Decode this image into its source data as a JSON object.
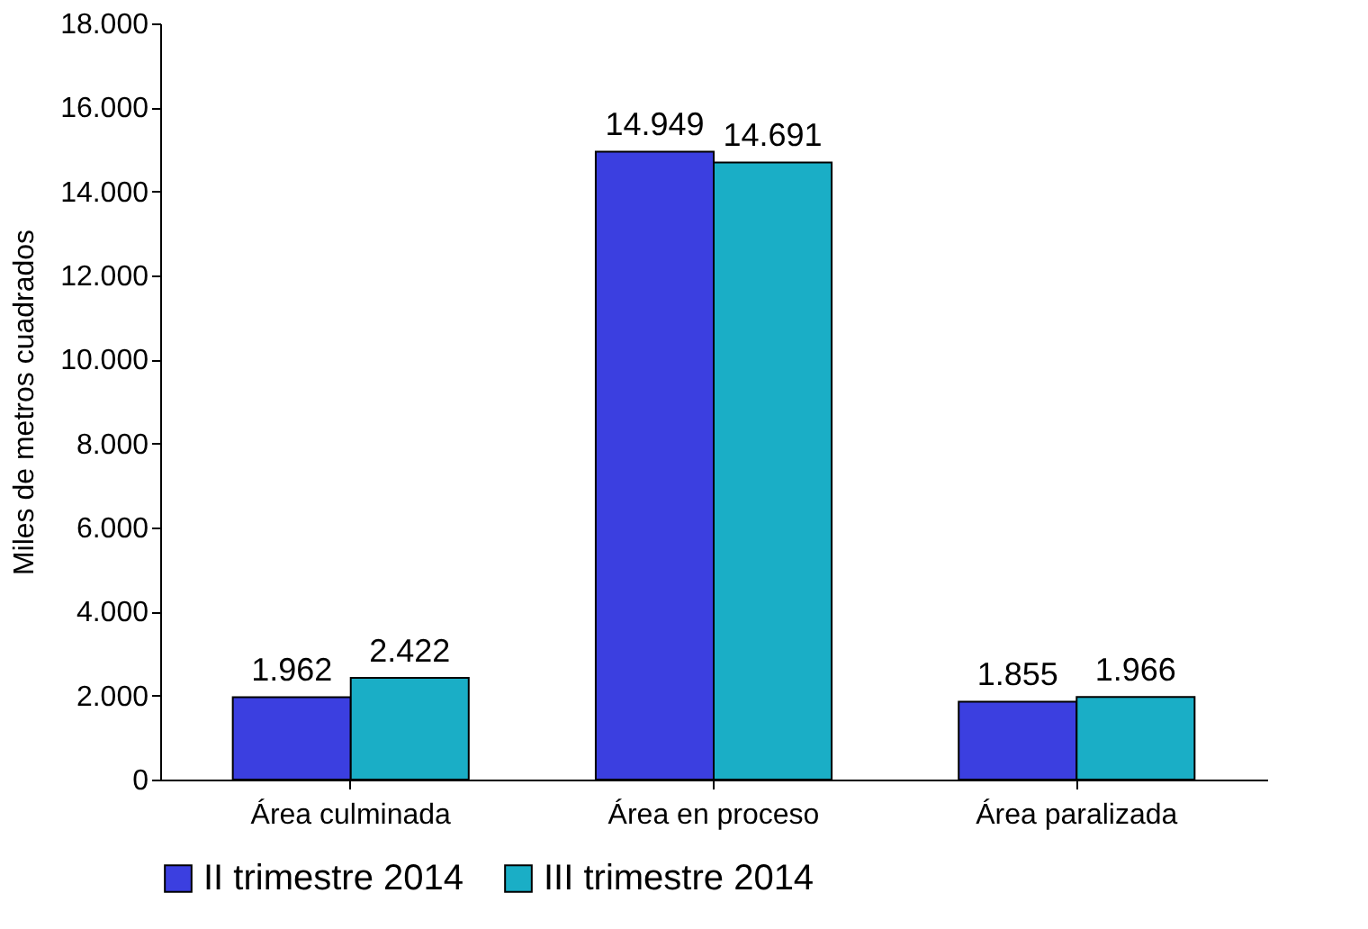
{
  "chart_data": {
    "type": "bar",
    "ylabel": "Miles de metros cuadrados",
    "categories": [
      "Área culminada",
      "Área en proceso",
      "Área paralizada"
    ],
    "series": [
      {
        "name": "II trimestre 2014",
        "color": "#3b3fe0",
        "values": [
          1962,
          14949,
          1855
        ],
        "value_labels": [
          "1.962",
          "14.949",
          "1.855"
        ]
      },
      {
        "name": "III trimestre 2014",
        "color": "#1aaec6",
        "values": [
          2422,
          14691,
          1966
        ],
        "value_labels": [
          "2.422",
          "14.691",
          "1.966"
        ]
      }
    ],
    "ylim": [
      0,
      18000
    ],
    "yticks": [
      0,
      {
        "value": 2000,
        "label": "2.000"
      },
      {
        "value": 4000,
        "label": "4.000"
      },
      {
        "value": 6000,
        "label": "6.000"
      },
      {
        "value": 8000,
        "label": "8.000"
      },
      {
        "value": 10000,
        "label": "10.000"
      },
      {
        "value": 12000,
        "label": "12.000"
      },
      {
        "value": 14000,
        "label": "14.000"
      },
      {
        "value": 16000,
        "label": "16.000"
      },
      {
        "value": 18000,
        "label": "18.000"
      }
    ],
    "grid": false,
    "legend": "bottom"
  }
}
